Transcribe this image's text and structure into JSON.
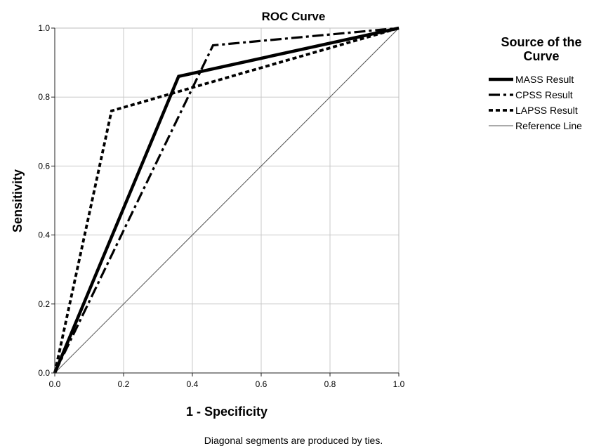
{
  "chart_data": {
    "type": "line",
    "title": "ROC Curve",
    "xlabel": "1 - Specificity",
    "ylabel": "Sensitivity",
    "xlim": [
      0,
      1
    ],
    "ylim": [
      0,
      1
    ],
    "xticks": [
      "0.0",
      "0.2",
      "0.4",
      "0.6",
      "0.8",
      "1.0"
    ],
    "yticks": [
      "0.0",
      "0.2",
      "0.4",
      "0.6",
      "0.8",
      "1.0"
    ],
    "grid": true,
    "legend": {
      "title": "Source of the Curve",
      "title_lines": [
        "Source of the",
        "Curve"
      ],
      "placement": "right"
    },
    "footnote": "Diagonal segments are produced by ties.",
    "series": [
      {
        "name": "MASS Result",
        "style": "solid-thick",
        "x": [
          0,
          0.36,
          1
        ],
        "y": [
          0,
          0.86,
          1
        ]
      },
      {
        "name": "CPSS Result",
        "style": "dash-dot",
        "x": [
          0,
          0.46,
          1
        ],
        "y": [
          0,
          0.95,
          1
        ]
      },
      {
        "name": "LAPSS Result",
        "style": "dotted",
        "x": [
          0,
          0.165,
          1
        ],
        "y": [
          0,
          0.76,
          1
        ]
      },
      {
        "name": "Reference Line",
        "style": "thin",
        "x": [
          0,
          1
        ],
        "y": [
          0,
          1
        ]
      }
    ]
  }
}
